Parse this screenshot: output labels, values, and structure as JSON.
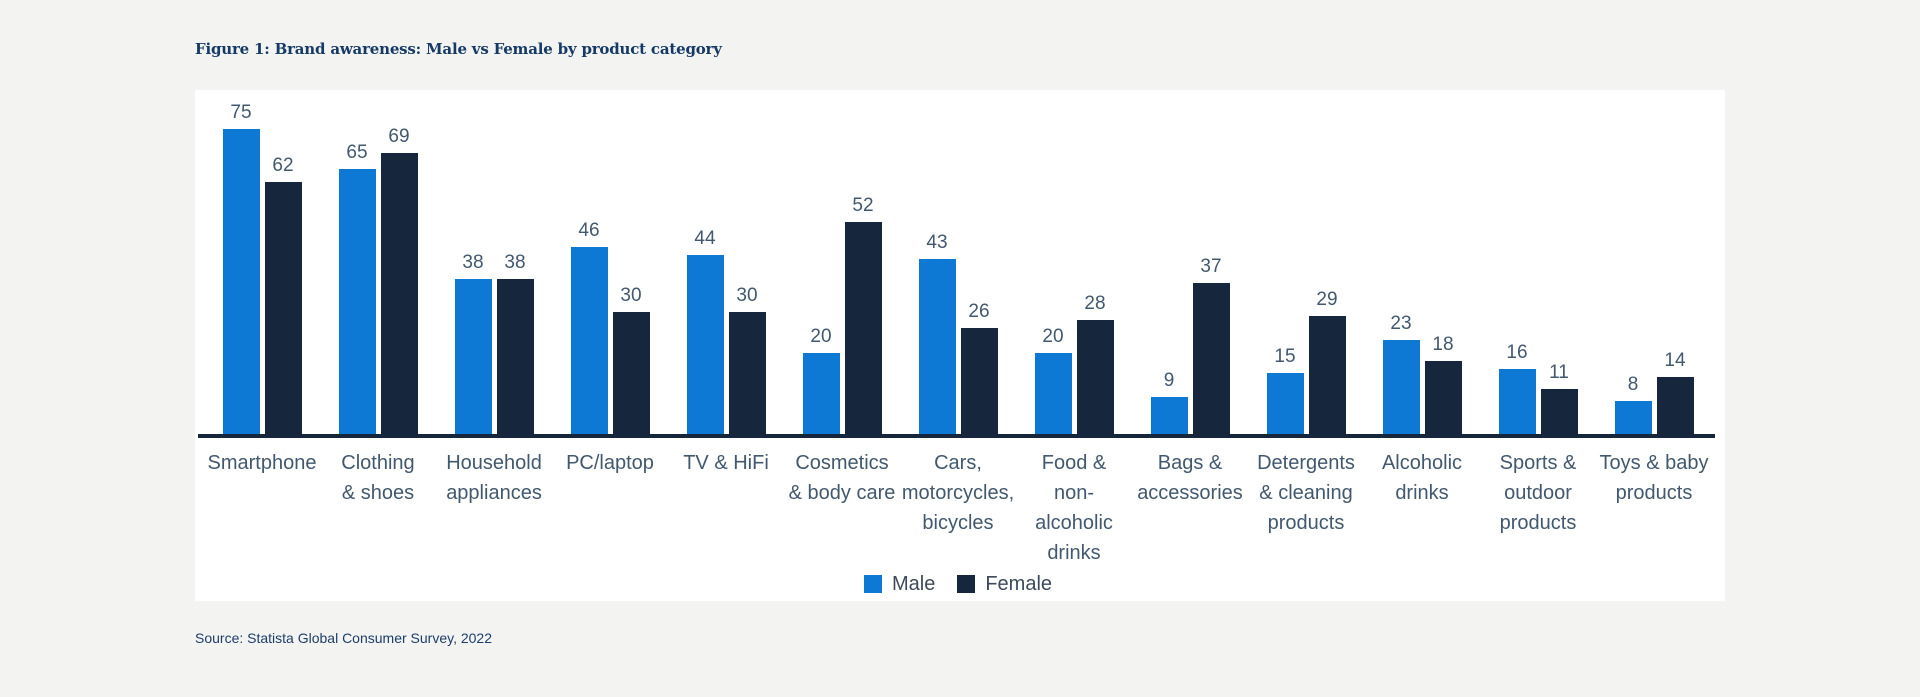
{
  "page": {
    "background_color": "#f3f3f1",
    "panel_color": "#ffffff"
  },
  "figure": {
    "title": "Figure 1: Brand awareness: Male vs Female by product category",
    "title_color": "#163a66",
    "source": "Source: Statista Global Consumer Survey, 2022",
    "source_color": "#1d3e68"
  },
  "legend": {
    "items": [
      {
        "label": "Male",
        "color": "#0d79d4"
      },
      {
        "label": "Female",
        "color": "#15263d"
      }
    ]
  },
  "chart_data": {
    "type": "bar",
    "grouped": true,
    "title": "Figure 1: Brand awareness: Male vs Female by product category",
    "xlabel": "",
    "ylabel": "",
    "ylim": [
      0,
      80
    ],
    "y_axis_visible": false,
    "grid": false,
    "value_labels_shown": true,
    "legend_position": "bottom-center",
    "axis_line_color": "#15263d",
    "label_color": "#42586e",
    "categories": [
      "Smartphone",
      "Clothing & shoes",
      "Household appliances",
      "PC/laptop",
      "TV & HiFi",
      "Cosmetics & body care",
      "Cars, motorcycles, bicycles",
      "Food & non-alcoholic drinks",
      "Bags & accessories",
      "Detergents & cleaning products",
      "Alcoholic drinks",
      "Sports & outdoor products",
      "Toys & baby products"
    ],
    "category_label_lines": [
      [
        "Smartphone"
      ],
      [
        "Clothing",
        "& shoes"
      ],
      [
        "Household",
        "appliances"
      ],
      [
        "PC/laptop"
      ],
      [
        "TV & HiFi"
      ],
      [
        "Cosmetics",
        "& body care"
      ],
      [
        "Cars,",
        "motorcycles,",
        "bicycles"
      ],
      [
        "Food &",
        "non-",
        "alcoholic",
        "drinks"
      ],
      [
        "Bags &",
        "accessories"
      ],
      [
        "Detergents",
        "& cleaning",
        "products"
      ],
      [
        "Alcoholic",
        "drinks"
      ],
      [
        "Sports &",
        "outdoor",
        "products"
      ],
      [
        "Toys & baby",
        "products"
      ]
    ],
    "series": [
      {
        "name": "Male",
        "color": "#0d79d4",
        "values": [
          75,
          65,
          38,
          46,
          44,
          20,
          43,
          20,
          9,
          15,
          23,
          16,
          8
        ]
      },
      {
        "name": "Female",
        "color": "#15263d",
        "values": [
          62,
          69,
          38,
          30,
          30,
          52,
          26,
          28,
          37,
          29,
          18,
          11,
          14
        ]
      }
    ]
  }
}
